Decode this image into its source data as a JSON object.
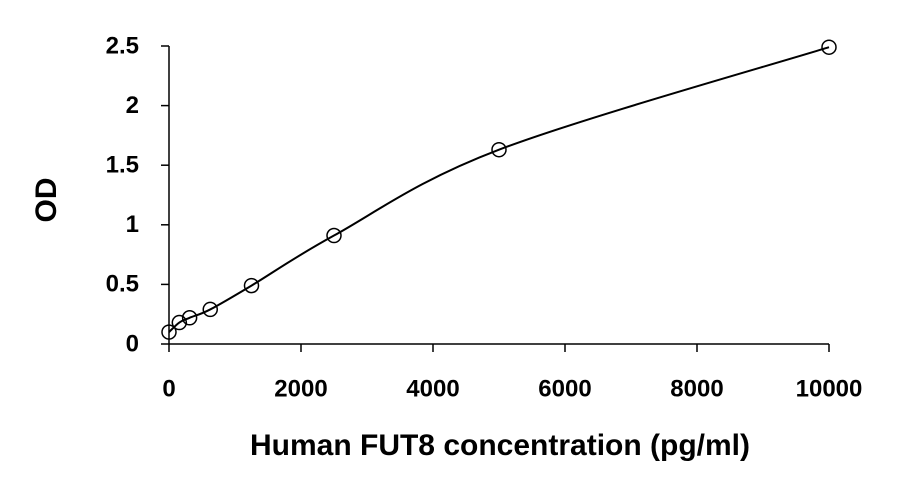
{
  "chart_data": {
    "type": "scatter",
    "x_label": "Human FUT8 concentration (pg/ml)",
    "y_label": "OD",
    "x": [
      0,
      156.25,
      312.5,
      625,
      1250,
      2500,
      5000,
      10000
    ],
    "values": [
      0.1,
      0.18,
      0.22,
      0.29,
      0.49,
      0.91,
      1.63,
      2.49
    ],
    "color": "#000000",
    "smooth_line": true,
    "xlim": [
      0,
      10000
    ],
    "xticks": [
      0,
      2000,
      4000,
      6000,
      8000,
      10000
    ],
    "ylim": [
      0,
      2.5
    ],
    "yticks": [
      0,
      0.5,
      1,
      1.5,
      2,
      2.5
    ],
    "grid": false
  }
}
